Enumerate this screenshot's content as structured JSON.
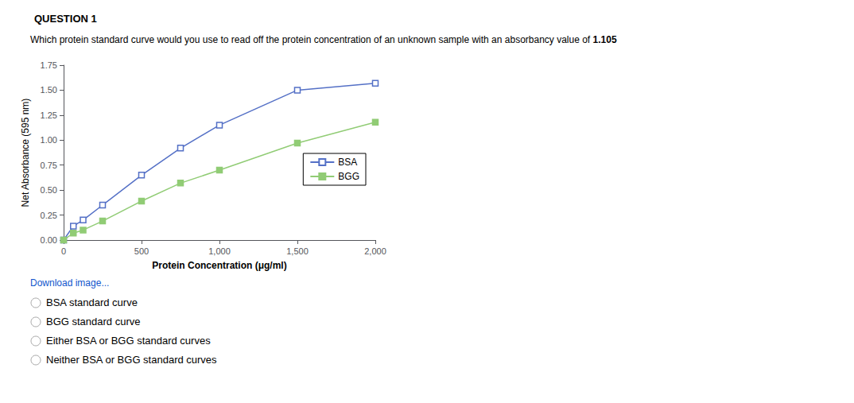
{
  "chart_data": {
    "type": "line",
    "title": "QUESTION 1",
    "subtitle": "Which protein standard curve would you use to read off the protein concentration of an unknown sample with an absorbancy value of ",
    "annotations": [
      {
        "text": "1.105"
      },
      {
        "text": "Download image...",
        "color": "#1155cc"
      },
      {
        "text": "BSA standard curve"
      },
      {
        "text": "BGG standard curve"
      },
      {
        "text": "Either BSA or BGG standard curves"
      },
      {
        "text": "Neither BSA or BGG standard curves"
      }
    ],
    "x": [
      0,
      62.5,
      125,
      250,
      500,
      750,
      1000,
      1500,
      2000
    ],
    "series": [
      {
        "name": "BSA",
        "marker": "square_open",
        "values": [
          0.0,
          0.14,
          0.2,
          0.35,
          0.65,
          0.92,
          1.15,
          1.5,
          1.57
        ]
      },
      {
        "name": "BGG",
        "marker": "square",
        "values": [
          0.0,
          0.07,
          0.1,
          0.19,
          0.39,
          0.57,
          0.7,
          0.97,
          1.18
        ]
      }
    ],
    "xlabel": "Protein Concentration (μg/ml)",
    "ylabel": "Net Absorbance (595 nm)",
    "xlim": [
      0,
      2000
    ],
    "ylim": [
      0.0,
      1.75
    ],
    "xticks": [
      0,
      500,
      {
        "value": 1000,
        "label": "1,000"
      },
      {
        "value": 1500,
        "label": "1,500"
      },
      {
        "value": 2000,
        "label": "2,000"
      }
    ],
    "yticks": [
      {
        "value": 0,
        "label": "0.00"
      },
      0.25,
      {
        "value": 0.5,
        "label": "0.50"
      },
      0.75,
      {
        "value": 1,
        "label": "1.00"
      },
      1.25,
      {
        "value": 1.5,
        "label": "1.50"
      },
      1.75
    ],
    "grid": false,
    "legend": "right"
  }
}
